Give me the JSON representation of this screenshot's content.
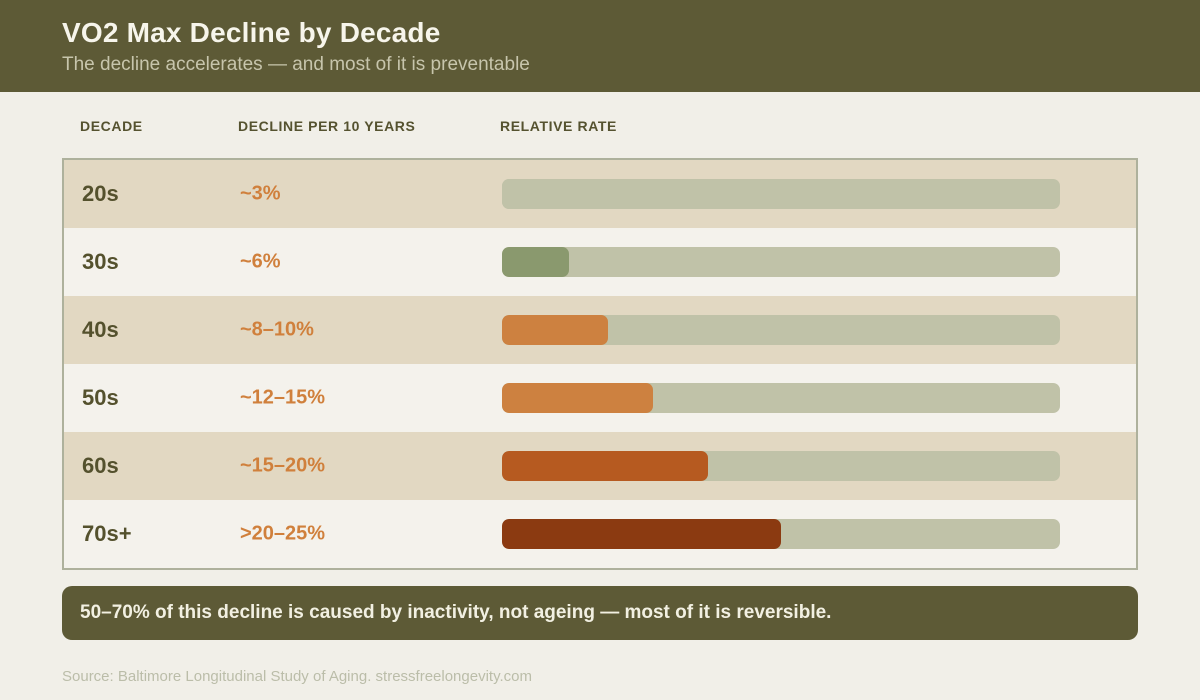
{
  "header": {
    "title": "VO2 Max Decline by Decade",
    "subtitle": "The decline accelerates — and most of it is preventable"
  },
  "columns": {
    "decade": "DECADE",
    "decline": "DECLINE PER 10 YEARS",
    "rate": "RELATIVE RATE"
  },
  "rows": [
    {
      "decade": "20s",
      "decline": "~3%",
      "fill_pct": 6,
      "fill_color": "#c0c2a8"
    },
    {
      "decade": "30s",
      "decline": "~6%",
      "fill_pct": 12,
      "fill_color": "#8a996e"
    },
    {
      "decade": "40s",
      "decline": "~8–10%",
      "fill_pct": 19,
      "fill_color": "#cd8140"
    },
    {
      "decade": "50s",
      "decline": "~12–15%",
      "fill_pct": 27,
      "fill_color": "#cd8140"
    },
    {
      "decade": "60s",
      "decline": "~15–20%",
      "fill_pct": 37,
      "fill_color": "#b65a20"
    },
    {
      "decade": "70s+",
      "decline": ">20–25%",
      "fill_pct": 50,
      "fill_color": "#8b3a11"
    }
  ],
  "chart_data": {
    "type": "bar",
    "orientation": "horizontal",
    "title": "VO2 Max Decline by Decade",
    "subtitle": "The decline accelerates — and most of it is preventable",
    "categories": [
      "20s",
      "30s",
      "40s",
      "50s",
      "60s",
      "70s+"
    ],
    "decline_per_10_years_labels": [
      "~3%",
      "~6%",
      "~8–10%",
      "~12–15%",
      "~15–20%",
      ">20–25%"
    ],
    "decline_per_10_years_pct_range": [
      [
        3,
        3
      ],
      [
        6,
        6
      ],
      [
        8,
        10
      ],
      [
        12,
        15
      ],
      [
        15,
        20
      ],
      [
        20,
        25
      ]
    ],
    "relative_rate_fill_pct_of_track": [
      6,
      12,
      19,
      27,
      37,
      50
    ],
    "bar_colors": [
      "#c0c2a8",
      "#8a996e",
      "#cd8140",
      "#cd8140",
      "#b65a20",
      "#8b3a11"
    ],
    "track_color": "#c0c2a8",
    "grid": false,
    "legend": "none"
  },
  "callout": {
    "text": "50–70% of this decline is caused by inactivity, not ageing  —  most of it is reversible."
  },
  "source": {
    "text": "Source: Baltimore Longitudinal Study of Aging. stressfreelongevity.com"
  },
  "colors": {
    "header_bg": "#5d5a36",
    "page_bg": "#f1efe8",
    "row_tan": "#e2d8c2",
    "row_light": "#f4f2ec",
    "table_border": "#aeb19c",
    "track": "#c0c2a8",
    "green_fill": "#8a996e",
    "orange_fill": "#cd8140",
    "rust_fill": "#b65a20",
    "dark_rust_fill": "#8b3a11",
    "decade_text": "#54512d",
    "decline_text": "#d0803c",
    "title_text": "#f7f5eb",
    "subtitle_text": "#c7c5ac",
    "callout_text": "#f2f0e2",
    "source_text": "#bbbda9"
  }
}
